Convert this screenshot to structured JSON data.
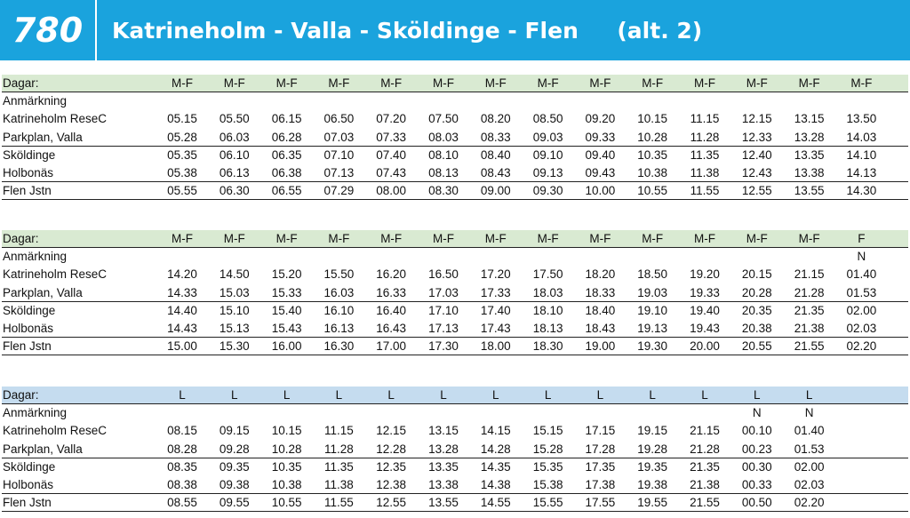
{
  "header": {
    "route_number": "780",
    "title": "Katrineholm - Valla - Sköldinge - Flen     (alt. 2)"
  },
  "tables": [
    {
      "style": "green",
      "days_label": "Dagar:",
      "days": [
        "M-F",
        "M-F",
        "M-F",
        "M-F",
        "M-F",
        "M-F",
        "M-F",
        "M-F",
        "M-F",
        "M-F",
        "M-F",
        "M-F",
        "M-F",
        "M-F"
      ],
      "remark_label": "Anmärkning",
      "remarks": [
        "",
        "",
        "",
        "",
        "",
        "",
        "",
        "",
        "",
        "",
        "",
        "",
        "",
        ""
      ],
      "stops": [
        {
          "name": "Katrineholm ReseC",
          "times": [
            "05.15",
            "05.50",
            "06.15",
            "06.50",
            "07.20",
            "07.50",
            "08.20",
            "08.50",
            "09.20",
            "10.15",
            "11.15",
            "12.15",
            "13.15",
            "13.50"
          ]
        },
        {
          "name": "Parkplan, Valla",
          "times": [
            "05.28",
            "06.03",
            "06.28",
            "07.03",
            "07.33",
            "08.03",
            "08.33",
            "09.03",
            "09.33",
            "10.28",
            "11.28",
            "12.33",
            "13.28",
            "14.03"
          ]
        },
        {
          "name": "Sköldinge",
          "times": [
            "05.35",
            "06.10",
            "06.35",
            "07.10",
            "07.40",
            "08.10",
            "08.40",
            "09.10",
            "09.40",
            "10.35",
            "11.35",
            "12.40",
            "13.35",
            "14.10"
          ]
        },
        {
          "name": "Holbonäs",
          "times": [
            "05.38",
            "06.13",
            "06.38",
            "07.13",
            "07.43",
            "08.13",
            "08.43",
            "09.13",
            "09.43",
            "10.38",
            "11.38",
            "12.43",
            "13.38",
            "14.13"
          ]
        },
        {
          "name": "Flen Jstn",
          "times": [
            "05.55",
            "06.30",
            "06.55",
            "07.29",
            "08.00",
            "08.30",
            "09.00",
            "09.30",
            "10.00",
            "10.55",
            "11.55",
            "12.55",
            "13.55",
            "14.30"
          ]
        }
      ]
    },
    {
      "style": "green",
      "days_label": "Dagar:",
      "days": [
        "M-F",
        "M-F",
        "M-F",
        "M-F",
        "M-F",
        "M-F",
        "M-F",
        "M-F",
        "M-F",
        "M-F",
        "M-F",
        "M-F",
        "M-F",
        "F"
      ],
      "remark_label": "Anmärkning",
      "remarks": [
        "",
        "",
        "",
        "",
        "",
        "",
        "",
        "",
        "",
        "",
        "",
        "",
        "",
        "N"
      ],
      "stops": [
        {
          "name": "Katrineholm ReseC",
          "times": [
            "14.20",
            "14.50",
            "15.20",
            "15.50",
            "16.20",
            "16.50",
            "17.20",
            "17.50",
            "18.20",
            "18.50",
            "19.20",
            "20.15",
            "21.15",
            "01.40"
          ]
        },
        {
          "name": "Parkplan, Valla",
          "times": [
            "14.33",
            "15.03",
            "15.33",
            "16.03",
            "16.33",
            "17.03",
            "17.33",
            "18.03",
            "18.33",
            "19.03",
            "19.33",
            "20.28",
            "21.28",
            "01.53"
          ]
        },
        {
          "name": "Sköldinge",
          "times": [
            "14.40",
            "15.10",
            "15.40",
            "16.10",
            "16.40",
            "17.10",
            "17.40",
            "18.10",
            "18.40",
            "19.10",
            "19.40",
            "20.35",
            "21.35",
            "02.00"
          ]
        },
        {
          "name": "Holbonäs",
          "times": [
            "14.43",
            "15.13",
            "15.43",
            "16.13",
            "16.43",
            "17.13",
            "17.43",
            "18.13",
            "18.43",
            "19.13",
            "19.43",
            "20.38",
            "21.38",
            "02.03"
          ]
        },
        {
          "name": "Flen Jstn",
          "times": [
            "15.00",
            "15.30",
            "16.00",
            "16.30",
            "17.00",
            "17.30",
            "18.00",
            "18.30",
            "19.00",
            "19.30",
            "20.00",
            "20.55",
            "21.55",
            "02.20"
          ]
        }
      ]
    },
    {
      "style": "blue",
      "days_label": "Dagar:",
      "days": [
        "L",
        "L",
        "L",
        "L",
        "L",
        "L",
        "L",
        "L",
        "L",
        "L",
        "L",
        "L",
        "L",
        ""
      ],
      "remark_label": "Anmärkning",
      "remarks": [
        "",
        "",
        "",
        "",
        "",
        "",
        "",
        "",
        "",
        "",
        "",
        "N",
        "N",
        ""
      ],
      "stops": [
        {
          "name": "Katrineholm ReseC",
          "times": [
            "08.15",
            "09.15",
            "10.15",
            "11.15",
            "12.15",
            "13.15",
            "14.15",
            "15.15",
            "17.15",
            "19.15",
            "21.15",
            "00.10",
            "01.40",
            ""
          ]
        },
        {
          "name": "Parkplan, Valla",
          "times": [
            "08.28",
            "09.28",
            "10.28",
            "11.28",
            "12.28",
            "13.28",
            "14.28",
            "15.28",
            "17.28",
            "19.28",
            "21.28",
            "00.23",
            "01.53",
            ""
          ]
        },
        {
          "name": "Sköldinge",
          "times": [
            "08.35",
            "09.35",
            "10.35",
            "11.35",
            "12.35",
            "13.35",
            "14.35",
            "15.35",
            "17.35",
            "19.35",
            "21.35",
            "00.30",
            "02.00",
            ""
          ]
        },
        {
          "name": "Holbonäs",
          "times": [
            "08.38",
            "09.38",
            "10.38",
            "11.38",
            "12.38",
            "13.38",
            "14.38",
            "15.38",
            "17.38",
            "19.38",
            "21.38",
            "00.33",
            "02.03",
            ""
          ]
        },
        {
          "name": "Flen Jstn",
          "times": [
            "08.55",
            "09.55",
            "10.55",
            "11.55",
            "12.55",
            "13.55",
            "14.55",
            "15.55",
            "17.55",
            "19.55",
            "21.55",
            "00.50",
            "02.20",
            ""
          ]
        }
      ]
    }
  ]
}
